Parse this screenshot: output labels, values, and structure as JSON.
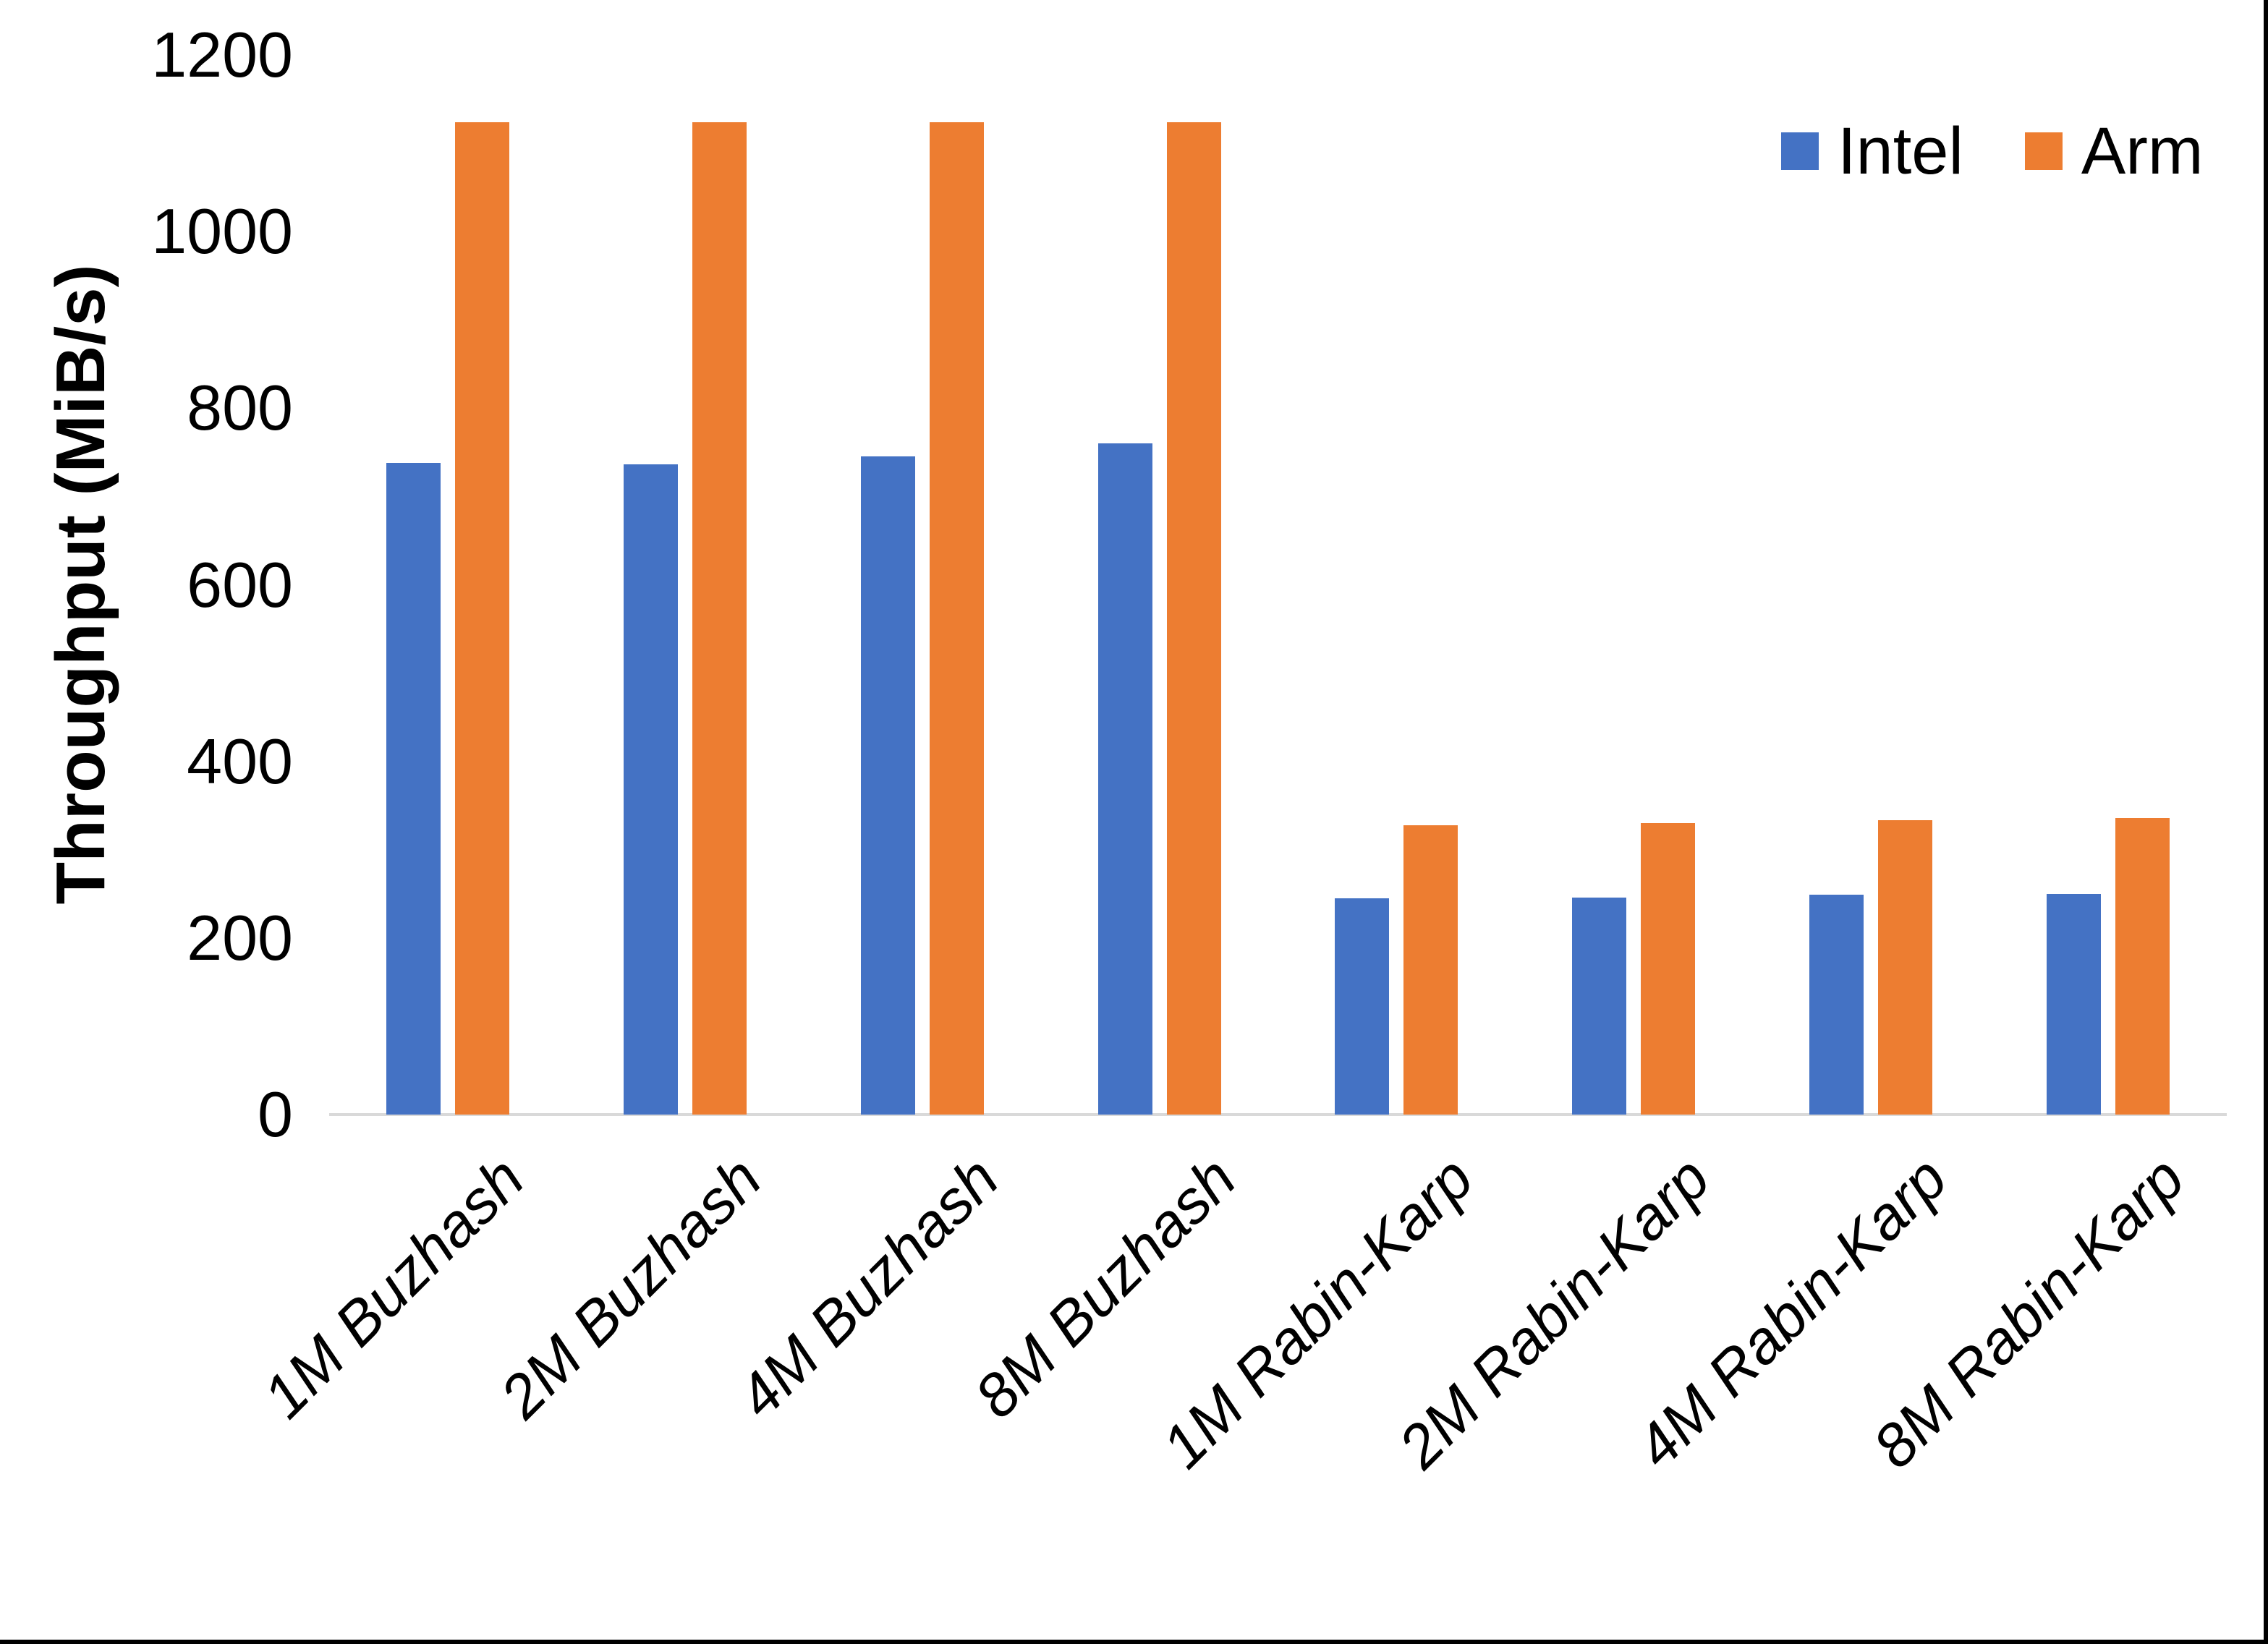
{
  "figure": {
    "background": "#FFFFFF",
    "edge_border_color": "#000000"
  },
  "chart_data": {
    "type": "bar",
    "title": "",
    "xlabel": "",
    "ylabel": "Throughput (MiB/s)",
    "ylim": [
      0,
      1200
    ],
    "yticks": [
      0,
      200,
      400,
      600,
      800,
      1000,
      1200
    ],
    "grid": false,
    "legend_position": "top-right",
    "axis_line_color": "#D9D9D9",
    "text_color": "#000000",
    "categories": [
      "1M Buzhash",
      "2M Buzhash",
      "4M Buzhash",
      "8M Buzhash",
      "1M Rabin-Karp",
      "2M Rabin-Karp",
      "4M Rabin-Karp",
      "8M Rabin-Karp"
    ],
    "series": [
      {
        "name": "Intel",
        "color": "#4472C4",
        "values": [
          738,
          736,
          745,
          760,
          245,
          246,
          249,
          250
        ]
      },
      {
        "name": "Arm",
        "color": "#ED7D31",
        "values": [
          1124,
          1124,
          1124,
          1124,
          328,
          330,
          333,
          336
        ]
      }
    ]
  }
}
